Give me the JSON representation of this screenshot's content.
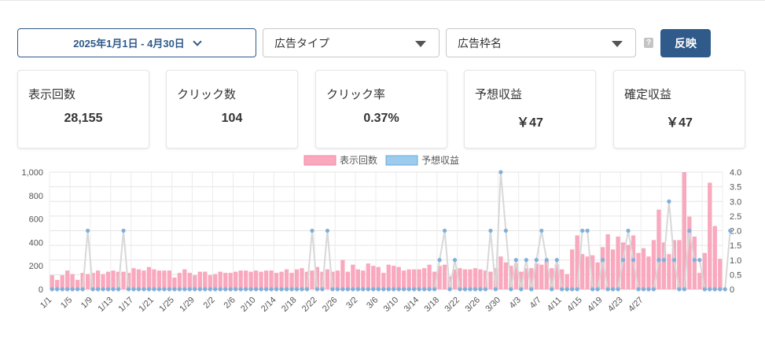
{
  "filters": {
    "date_range": "2025年1月1日 - 4月30日",
    "ad_type_placeholder": "広告タイプ",
    "ad_slot_placeholder": "広告枠名",
    "help": "?",
    "apply_label": "反映"
  },
  "kpis": [
    {
      "label": "表示回数",
      "value": "28,155"
    },
    {
      "label": "クリック数",
      "value": "104"
    },
    {
      "label": "クリック率",
      "value": "0.37%"
    },
    {
      "label": "予想収益",
      "value": "￥47"
    },
    {
      "label": "確定収益",
      "value": "￥47"
    }
  ],
  "colors": {
    "bar": "#f9a8bd",
    "line": "#d8d8d8",
    "point": "#7fb0dc",
    "accent": "#2f5a8a"
  },
  "chart_data": {
    "type": "bar+line",
    "series": [
      {
        "name": "表示回数",
        "type": "bar",
        "axis": "left",
        "values": [
          120,
          80,
          120,
          160,
          130,
          80,
          140,
          130,
          140,
          160,
          130,
          150,
          160,
          150,
          150,
          140,
          180,
          170,
          160,
          190,
          170,
          160,
          160,
          160,
          100,
          140,
          170,
          140,
          120,
          150,
          150,
          120,
          130,
          150,
          140,
          140,
          150,
          160,
          160,
          150,
          160,
          150,
          160,
          160,
          140,
          150,
          170,
          140,
          170,
          180,
          150,
          160,
          190,
          150,
          170,
          150,
          160,
          250,
          150,
          210,
          170,
          160,
          220,
          200,
          190,
          140,
          210,
          200,
          190,
          160,
          170,
          170,
          170,
          180,
          210,
          150,
          200,
          210,
          110,
          170,
          180,
          170,
          170,
          180,
          170,
          160,
          150,
          180,
          280,
          230,
          200,
          220,
          150,
          180,
          180,
          220,
          210,
          240,
          180,
          210,
          170,
          130,
          340,
          460,
          300,
          280,
          290,
          230,
          360,
          470,
          340,
          450,
          400,
          380,
          460,
          310,
          350,
          280,
          420,
          680,
          400,
          300,
          420,
          420,
          1000,
          620,
          450,
          140,
          310,
          910,
          540,
          260
        ]
      },
      {
        "name": "予想収益",
        "type": "line",
        "axis": "right",
        "values": [
          0,
          0,
          0,
          0,
          0,
          0,
          0,
          2,
          0,
          0,
          0,
          0,
          0,
          0,
          2,
          0,
          0,
          0,
          0,
          0,
          0,
          0,
          0,
          0,
          0,
          0,
          0,
          0,
          0,
          0,
          0,
          0,
          0,
          0,
          0,
          0,
          0,
          0,
          0,
          0,
          0,
          0,
          0,
          0,
          0,
          0,
          0,
          0,
          0,
          0,
          0,
          2,
          0,
          0,
          2,
          0,
          0,
          0,
          0,
          0,
          0,
          0,
          0,
          0,
          0,
          0,
          0,
          0,
          0,
          0,
          0,
          0,
          0,
          0,
          0,
          0,
          1,
          2,
          0,
          1,
          0,
          0,
          0,
          0,
          0,
          0,
          2,
          0,
          4,
          2,
          0,
          1,
          0,
          1,
          0,
          1,
          2,
          1,
          0,
          1,
          0,
          0,
          0,
          0,
          2,
          2,
          0,
          0,
          1,
          0,
          0,
          0,
          1,
          2,
          1,
          0,
          0,
          0,
          0,
          1,
          1,
          3,
          1,
          0,
          0,
          2,
          1,
          1,
          0,
          0,
          0,
          0,
          0,
          2
        ]
      }
    ],
    "categories_tick_labels": [
      "1/1",
      "1/5",
      "1/9",
      "1/13",
      "1/17",
      "1/21",
      "1/25",
      "1/29",
      "2/2",
      "2/6",
      "2/10",
      "2/14",
      "2/18",
      "2/22",
      "2/26",
      "3/2",
      "3/6",
      "3/10",
      "3/14",
      "3/18",
      "3/22",
      "3/26",
      "3/30",
      "4/3",
      "4/7",
      "4/11",
      "4/15",
      "4/19",
      "4/23",
      "4/27"
    ],
    "y_left": {
      "ticks": [
        "0",
        "200",
        "400",
        "600",
        "800",
        "1,000"
      ],
      "range": [
        0,
        1000
      ]
    },
    "y_right": {
      "ticks": [
        "0",
        "0.5",
        "1.0",
        "1.5",
        "2.0",
        "2.5",
        "3.0",
        "3.5",
        "4.0"
      ],
      "range": [
        0,
        4
      ]
    },
    "legend": [
      {
        "label": "表示回数"
      },
      {
        "label": "予想収益"
      }
    ],
    "legend_position": "top",
    "grid": true
  }
}
